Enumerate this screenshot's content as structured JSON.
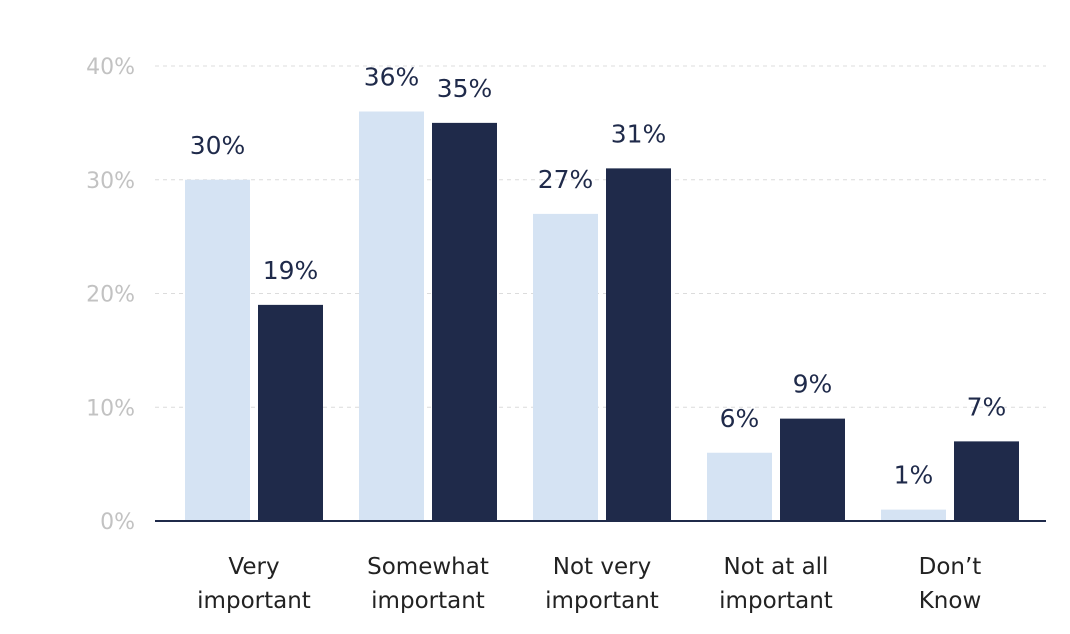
{
  "chart_data": {
    "type": "bar",
    "categories": [
      [
        "Very",
        "important"
      ],
      [
        "Somewhat",
        "important"
      ],
      [
        "Not very",
        "important"
      ],
      [
        "Not at all",
        "important"
      ],
      [
        "Don’t",
        "Know"
      ]
    ],
    "series": [
      {
        "color": "#d5e3f3",
        "values": [
          30,
          36,
          27,
          6,
          1
        ],
        "labels": [
          "30%",
          "36%",
          "27%",
          "6%",
          "1%"
        ]
      },
      {
        "color": "#1f2a4a",
        "values": [
          19,
          35,
          31,
          9,
          7
        ],
        "labels": [
          "19%",
          "35%",
          "31%",
          "9%",
          "7%"
        ]
      }
    ],
    "y_ticks": [
      0,
      10,
      20,
      30,
      40
    ],
    "y_tick_labels": [
      "0%",
      "10%",
      "20%",
      "30%",
      "40%"
    ],
    "ylim": [
      0,
      40
    ],
    "grid": true,
    "legend": "none"
  }
}
